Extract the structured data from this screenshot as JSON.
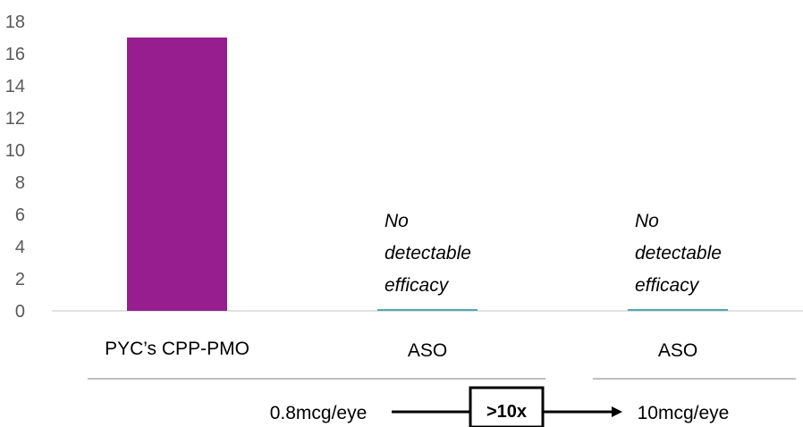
{
  "chart_data": {
    "type": "bar",
    "categories": [
      "PYC’s CPP-PMO",
      "ASO",
      "ASO"
    ],
    "values": [
      17,
      0,
      0
    ],
    "ylim": [
      0,
      18
    ],
    "yticks": [
      "0",
      "2",
      "4",
      "6",
      "8",
      "10",
      "12",
      "14",
      "16",
      "18"
    ],
    "grid": false,
    "colors": {
      "bar": "#961e8f",
      "zero_bar": "#4ea8b4",
      "axis": "#d9d9d9",
      "tick_text": "#595959"
    },
    "annotations": [
      {
        "category_index": 1,
        "lines": [
          "No",
          "detectable",
          "efficacy"
        ]
      },
      {
        "category_index": 2,
        "lines": [
          "No",
          "detectable",
          "efficacy"
        ]
      }
    ],
    "doses": {
      "low": "0.8mcg/eye",
      "high": "10mcg/eye",
      "multiplier": ">10x"
    }
  }
}
